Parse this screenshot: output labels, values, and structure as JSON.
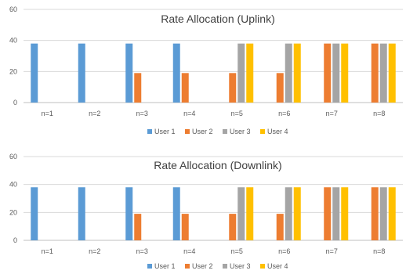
{
  "colors": {
    "user1": "#5b9bd5",
    "user2": "#ed7d31",
    "user3": "#a5a5a5",
    "user4": "#ffc000"
  },
  "chart_data": [
    {
      "type": "bar",
      "title": "Rate Allocation (Uplink)",
      "categories": [
        "n=1",
        "n=2",
        "n=3",
        "n=4",
        "n=5",
        "n=6",
        "n=7",
        "n=8"
      ],
      "ylim": [
        0,
        60
      ],
      "yticks": [
        0,
        20,
        40,
        60
      ],
      "grid": true,
      "legend_position": "bottom",
      "series": [
        {
          "name": "User 1",
          "values": [
            38,
            38,
            38,
            38,
            0,
            0,
            0,
            0
          ]
        },
        {
          "name": "User 2",
          "values": [
            0,
            0,
            19,
            19,
            19,
            19,
            38,
            38
          ]
        },
        {
          "name": "User 3",
          "values": [
            0,
            0,
            0,
            0,
            38,
            38,
            38,
            38
          ]
        },
        {
          "name": "User 4",
          "values": [
            0,
            0,
            0,
            0,
            38,
            38,
            38,
            38
          ]
        }
      ]
    },
    {
      "type": "bar",
      "title": "Rate Allocation (Downlink)",
      "categories": [
        "n=1",
        "n=2",
        "n=3",
        "n=4",
        "n=5",
        "n=6",
        "n=7",
        "n=8"
      ],
      "ylim": [
        0,
        60
      ],
      "yticks": [
        0,
        20,
        40,
        60
      ],
      "grid": true,
      "legend_position": "bottom",
      "series": [
        {
          "name": "User 1",
          "values": [
            38,
            38,
            38,
            38,
            0,
            0,
            0,
            0
          ]
        },
        {
          "name": "User 2",
          "values": [
            0,
            0,
            19,
            19,
            19,
            19,
            38,
            38
          ]
        },
        {
          "name": "User 3",
          "values": [
            0,
            0,
            0,
            0,
            38,
            38,
            38,
            38
          ]
        },
        {
          "name": "User 4",
          "values": [
            0,
            0,
            0,
            0,
            38,
            38,
            38,
            38
          ]
        }
      ]
    }
  ]
}
